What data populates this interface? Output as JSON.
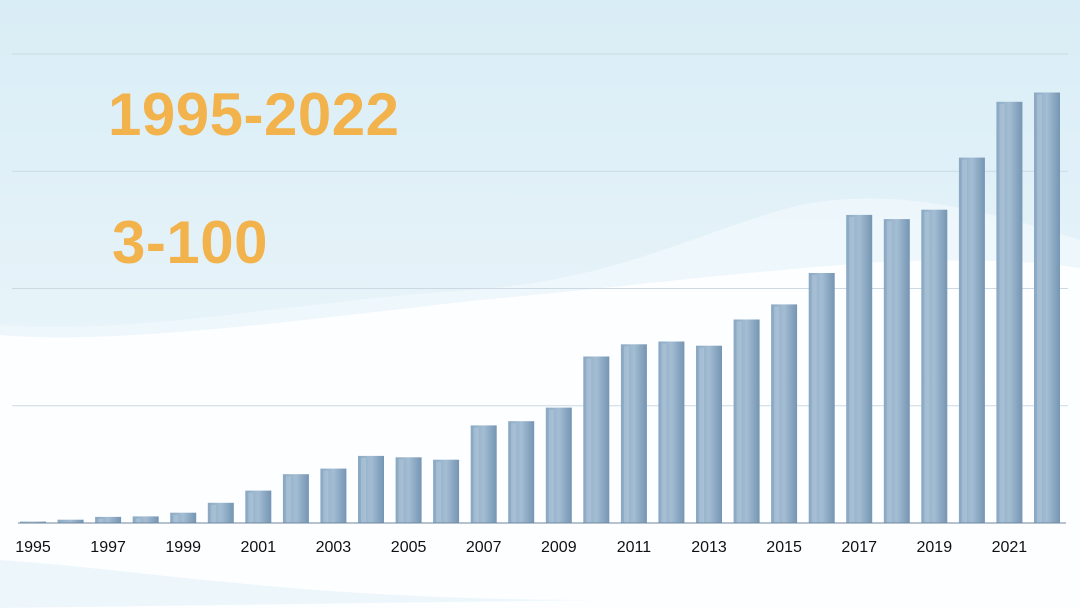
{
  "headline": {
    "years": "1995-2022",
    "range": "3-100"
  },
  "colors": {
    "bar": "#7f9fbd",
    "bar_light": "#a9c2d8",
    "headline": "#f2b24c",
    "grid": "#cfdbe4",
    "sky": "#dceef6"
  },
  "chart_data": {
    "type": "bar",
    "title": "",
    "xlabel": "",
    "ylabel": "",
    "categories": [
      "1995",
      "1996",
      "1997",
      "1998",
      "1999",
      "2000",
      "2001",
      "2002",
      "2003",
      "2004",
      "2005",
      "2006",
      "2007",
      "2008",
      "2009",
      "2010",
      "2011",
      "2012",
      "2013",
      "2014",
      "2015",
      "2016",
      "2017",
      "2018",
      "2019",
      "2020",
      "2021",
      "2022"
    ],
    "values": [
      0.3,
      0.7,
      1.3,
      1.4,
      2.2,
      4.3,
      6.9,
      10.4,
      11.6,
      14.3,
      14.0,
      13.5,
      20.8,
      21.7,
      24.6,
      35.5,
      38.1,
      38.7,
      37.8,
      43.4,
      46.6,
      53.3,
      65.7,
      64.8,
      66.8,
      77.9,
      89.8,
      91.8
    ],
    "tick_labels": [
      "1995",
      "1997",
      "1999",
      "2001",
      "2003",
      "2005",
      "2007",
      "2009",
      "2011",
      "2013",
      "2015",
      "2017",
      "2019",
      "2021"
    ],
    "ylim": [
      0,
      100
    ],
    "grid": true
  }
}
